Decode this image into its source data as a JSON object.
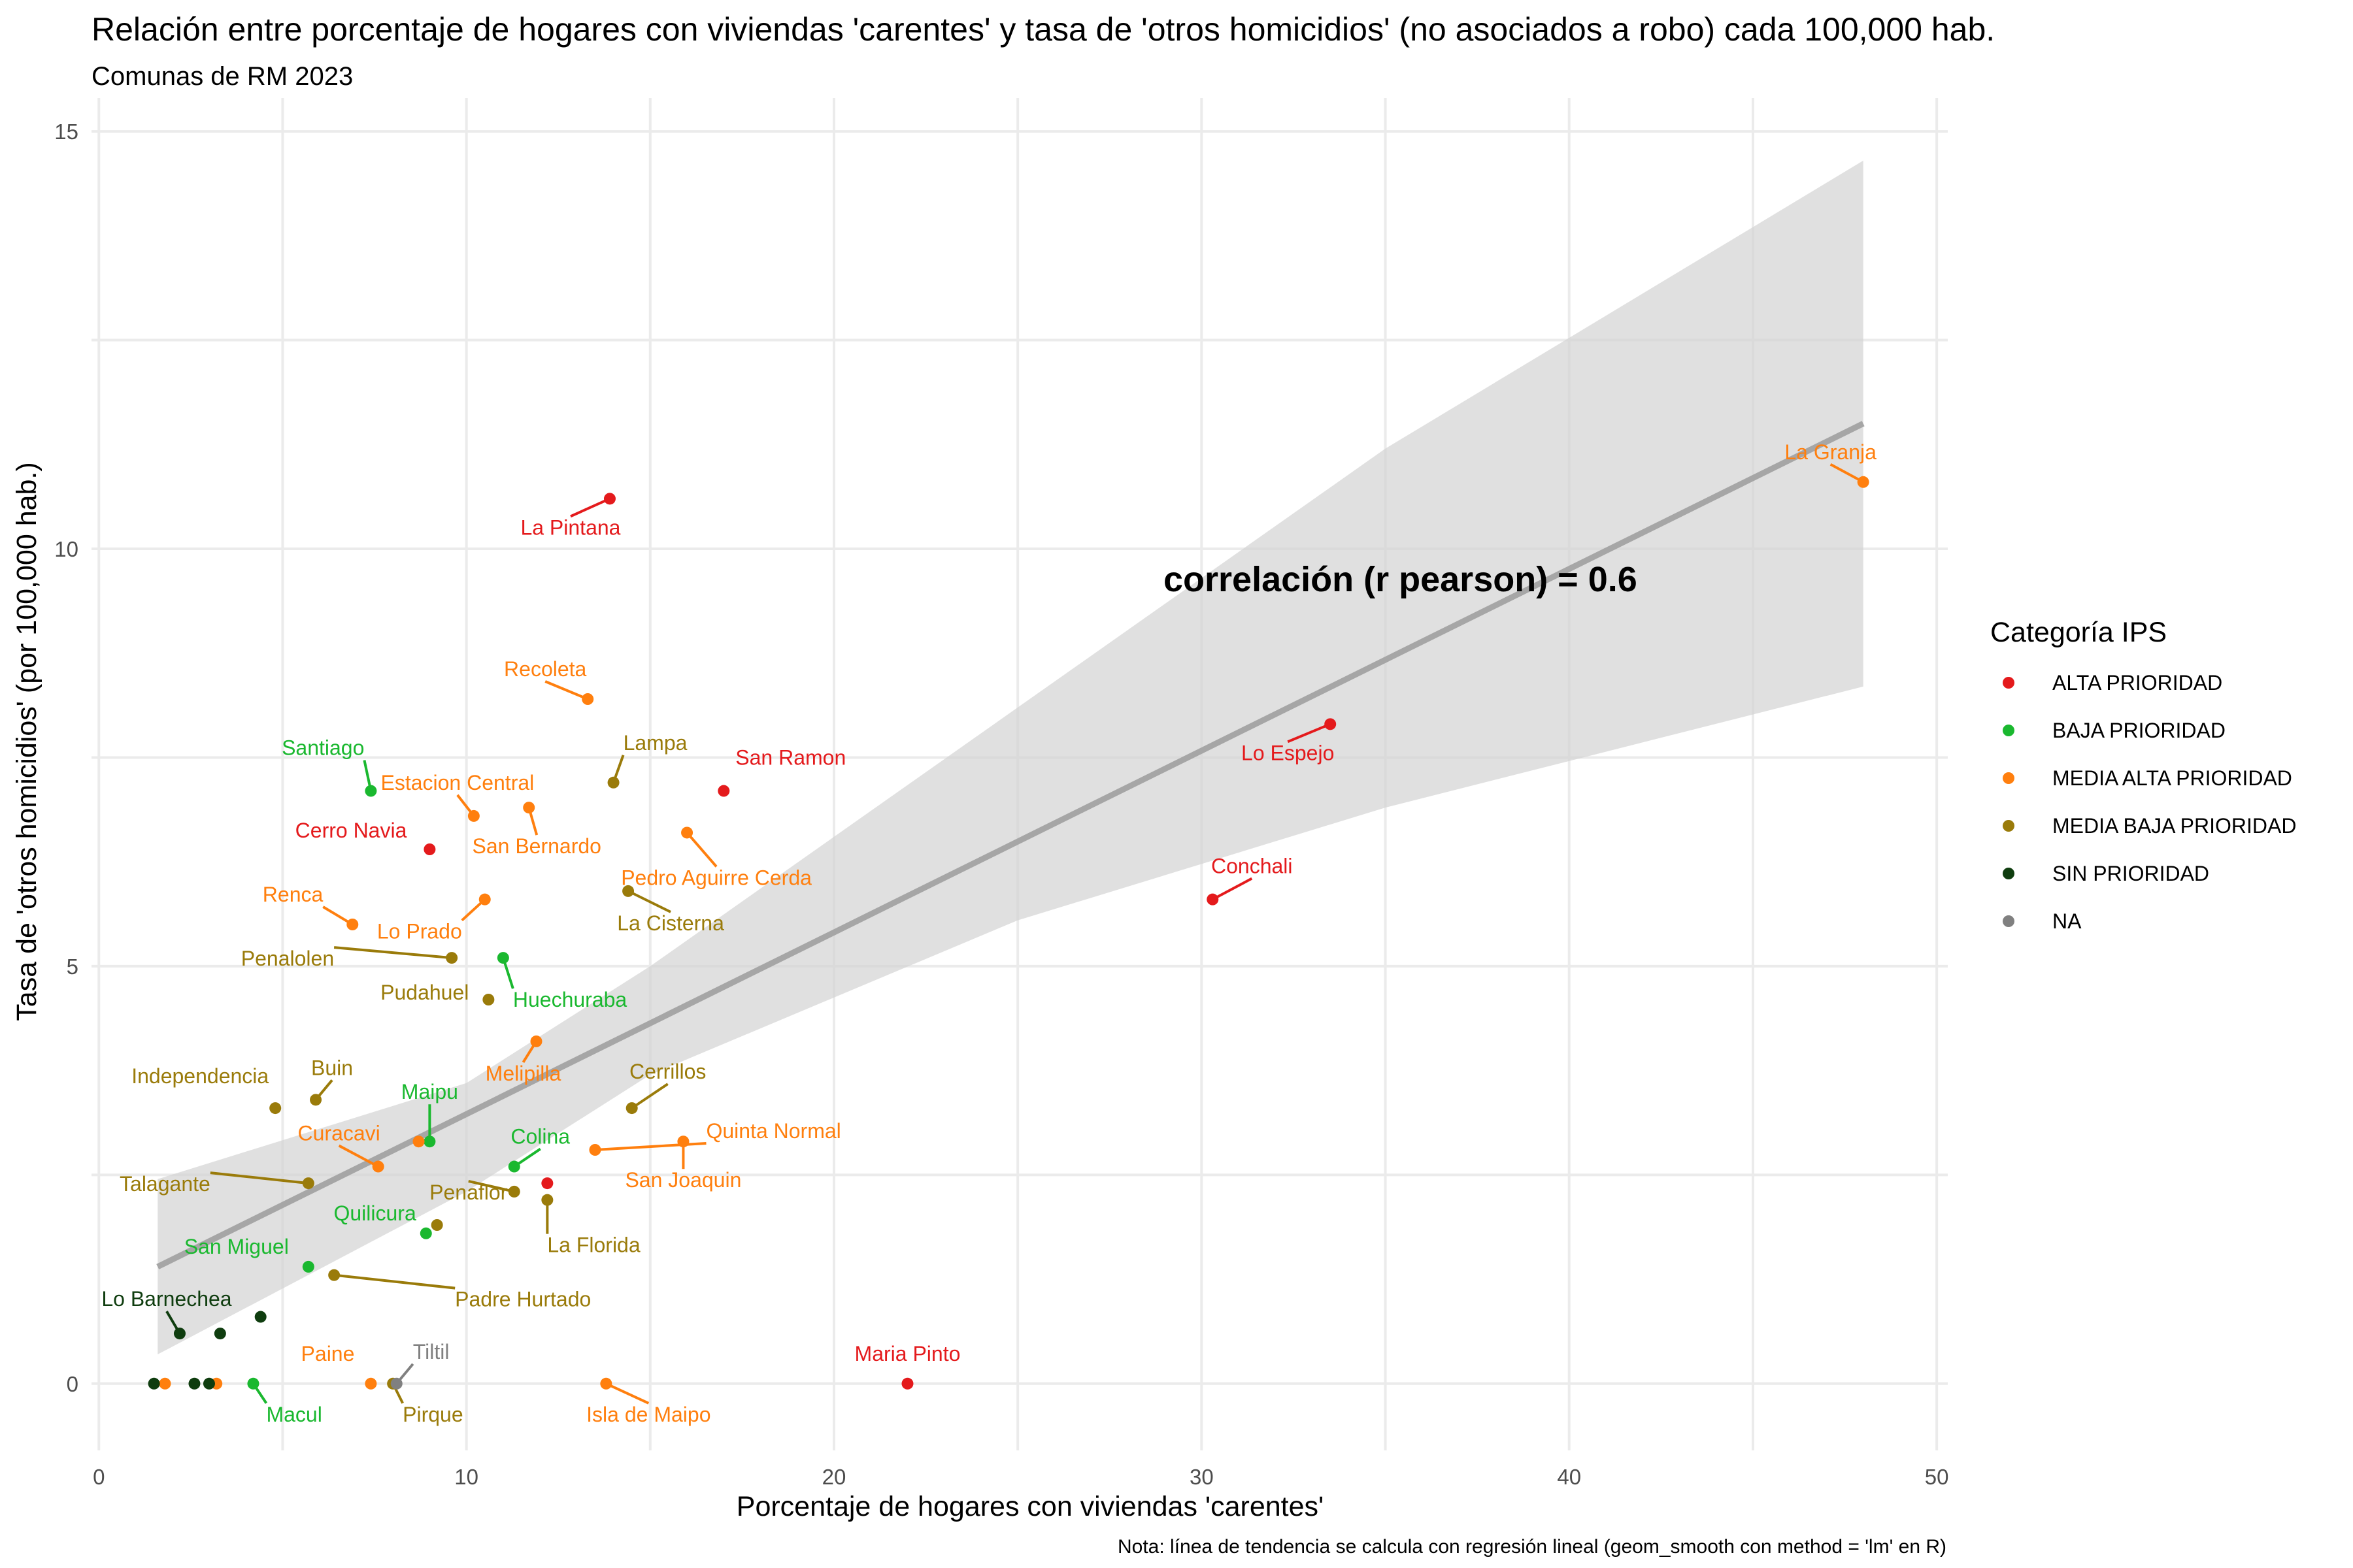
{
  "title": "Relación entre porcentaje de hogares con viviendas 'carentes' y tasa de 'otros homicidios' (no asociados a robo) cada 100,000 hab.",
  "subtitle": "Comunas de RM 2023",
  "caption": "Nota: línea de tendencia se calcula con regresión lineal (geom_smooth con method = 'lm' en R)",
  "annotation": "correlación (r pearson) = 0.6",
  "legend": {
    "title": "Categoría IPS",
    "items": [
      {
        "key": "ALTA",
        "label": "ALTA PRIORIDAD",
        "color": "#e41a1c"
      },
      {
        "key": "BAJA",
        "label": "BAJA PRIORIDAD",
        "color": "#1ab82f"
      },
      {
        "key": "MEDIA_ALTA",
        "label": "MEDIA ALTA PRIORIDAD",
        "color": "#ff7f0e"
      },
      {
        "key": "MEDIA_BAJA",
        "label": "MEDIA BAJA PRIORIDAD",
        "color": "#9a7b0a"
      },
      {
        "key": "SIN",
        "label": "SIN PRIORIDAD",
        "color": "#0f3d0f"
      },
      {
        "key": "NA",
        "label": "NA",
        "color": "#808080"
      }
    ]
  },
  "chart_data": {
    "type": "scatter",
    "xlabel": "Porcentaje de hogares con viviendas 'carentes'",
    "ylabel": "Tasa de 'otros homicidios' (por 100,000 hab.)",
    "xlim": [
      -0.2,
      50.3
    ],
    "ylim": [
      -0.8,
      15.4
    ],
    "xticks": [
      0,
      10,
      20,
      30,
      40,
      50
    ],
    "yticks": [
      0,
      5,
      10,
      15
    ],
    "grid": true,
    "legend_position": "right",
    "trend": {
      "method": "lm",
      "line": [
        [
          1.6,
          1.4
        ],
        [
          48.0,
          11.5
        ]
      ],
      "band_upper": [
        [
          1.6,
          2.45
        ],
        [
          10,
          3.6
        ],
        [
          15,
          5.0
        ],
        [
          25,
          8.1
        ],
        [
          35,
          11.2
        ],
        [
          48.0,
          14.65
        ]
      ],
      "band_lower": [
        [
          1.6,
          0.35
        ],
        [
          10,
          2.3
        ],
        [
          15,
          3.7
        ],
        [
          25,
          5.55
        ],
        [
          35,
          6.9
        ],
        [
          48.0,
          8.35
        ]
      ]
    },
    "points": [
      {
        "name": "La Pintana",
        "x": 13.9,
        "y": 10.6,
        "cat": "ALTA"
      },
      {
        "name": "San Ramon",
        "x": 17.0,
        "y": 7.1,
        "cat": "ALTA"
      },
      {
        "name": "Cerro Navia",
        "x": 9.0,
        "y": 6.4,
        "cat": "ALTA"
      },
      {
        "name": "Lo Espejo",
        "x": 33.5,
        "y": 7.9,
        "cat": "ALTA"
      },
      {
        "name": "Conchali",
        "x": 30.3,
        "y": 5.8,
        "cat": "ALTA"
      },
      {
        "name": "Maria Pinto",
        "x": 22.0,
        "y": 0.0,
        "cat": "ALTA"
      },
      {
        "name": "",
        "x": 12.2,
        "y": 2.4,
        "cat": "ALTA"
      },
      {
        "name": "Santiago",
        "x": 7.4,
        "y": 7.1,
        "cat": "BAJA"
      },
      {
        "name": "Huechuraba",
        "x": 11.0,
        "y": 5.1,
        "cat": "BAJA"
      },
      {
        "name": "Maipu",
        "x": 9.0,
        "y": 2.9,
        "cat": "BAJA"
      },
      {
        "name": "Colina",
        "x": 11.3,
        "y": 2.6,
        "cat": "BAJA"
      },
      {
        "name": "Quilicura",
        "x": 8.9,
        "y": 1.8,
        "cat": "BAJA"
      },
      {
        "name": "San Miguel",
        "x": 5.7,
        "y": 1.4,
        "cat": "BAJA"
      },
      {
        "name": "Macul",
        "x": 4.2,
        "y": 0.0,
        "cat": "BAJA"
      },
      {
        "name": "La Granja",
        "x": 48.0,
        "y": 10.8,
        "cat": "MEDIA_ALTA"
      },
      {
        "name": "Recoleta",
        "x": 13.3,
        "y": 8.2,
        "cat": "MEDIA_ALTA"
      },
      {
        "name": "Estacion Central",
        "x": 10.2,
        "y": 6.8,
        "cat": "MEDIA_ALTA"
      },
      {
        "name": "San Bernardo",
        "x": 11.7,
        "y": 6.9,
        "cat": "MEDIA_ALTA"
      },
      {
        "name": "Pedro Aguirre Cerda",
        "x": 16.0,
        "y": 6.6,
        "cat": "MEDIA_ALTA"
      },
      {
        "name": "Renca",
        "x": 6.9,
        "y": 5.5,
        "cat": "MEDIA_ALTA"
      },
      {
        "name": "Lo Prado",
        "x": 10.5,
        "y": 5.8,
        "cat": "MEDIA_ALTA"
      },
      {
        "name": "Melipilla",
        "x": 11.9,
        "y": 4.1,
        "cat": "MEDIA_ALTA"
      },
      {
        "name": "Curacavi",
        "x": 7.6,
        "y": 2.6,
        "cat": "MEDIA_ALTA"
      },
      {
        "name": "Quinta Normal",
        "x": 13.5,
        "y": 2.8,
        "cat": "MEDIA_ALTA"
      },
      {
        "name": "San Joaquin",
        "x": 15.9,
        "y": 2.9,
        "cat": "MEDIA_ALTA"
      },
      {
        "name": "Paine",
        "x": 7.4,
        "y": 0.0,
        "cat": "MEDIA_ALTA"
      },
      {
        "name": "Isla de Maipo",
        "x": 13.8,
        "y": 0.0,
        "cat": "MEDIA_ALTA"
      },
      {
        "name": "",
        "x": 8.7,
        "y": 2.9,
        "cat": "MEDIA_ALTA"
      },
      {
        "name": "",
        "x": 1.8,
        "y": 0.0,
        "cat": "MEDIA_ALTA"
      },
      {
        "name": "",
        "x": 3.2,
        "y": 0.0,
        "cat": "MEDIA_ALTA"
      },
      {
        "name": "Lampa",
        "x": 14.0,
        "y": 7.2,
        "cat": "MEDIA_BAJA"
      },
      {
        "name": "La Cisterna",
        "x": 14.4,
        "y": 5.9,
        "cat": "MEDIA_BAJA"
      },
      {
        "name": "Penalolen",
        "x": 9.6,
        "y": 5.1,
        "cat": "MEDIA_BAJA"
      },
      {
        "name": "Pudahuel",
        "x": 10.6,
        "y": 4.6,
        "cat": "MEDIA_BAJA"
      },
      {
        "name": "Independencia",
        "x": 4.8,
        "y": 3.3,
        "cat": "MEDIA_BAJA"
      },
      {
        "name": "Buin",
        "x": 5.9,
        "y": 3.4,
        "cat": "MEDIA_BAJA"
      },
      {
        "name": "Cerrillos",
        "x": 14.5,
        "y": 3.3,
        "cat": "MEDIA_BAJA"
      },
      {
        "name": "Talagante",
        "x": 5.7,
        "y": 2.4,
        "cat": "MEDIA_BAJA"
      },
      {
        "name": "Penaflor",
        "x": 11.3,
        "y": 2.3,
        "cat": "MEDIA_BAJA"
      },
      {
        "name": "La Florida",
        "x": 12.2,
        "y": 2.2,
        "cat": "MEDIA_BAJA"
      },
      {
        "name": "Padre Hurtado",
        "x": 6.4,
        "y": 1.3,
        "cat": "MEDIA_BAJA"
      },
      {
        "name": "Pirque",
        "x": 8.0,
        "y": 0.0,
        "cat": "MEDIA_BAJA"
      },
      {
        "name": "",
        "x": 9.2,
        "y": 1.9,
        "cat": "MEDIA_BAJA"
      },
      {
        "name": "Lo Barnechea",
        "x": 2.2,
        "y": 0.6,
        "cat": "SIN"
      },
      {
        "name": "",
        "x": 3.3,
        "y": 0.6,
        "cat": "SIN"
      },
      {
        "name": "",
        "x": 4.4,
        "y": 0.8,
        "cat": "SIN"
      },
      {
        "name": "",
        "x": 1.5,
        "y": 0.0,
        "cat": "SIN"
      },
      {
        "name": "",
        "x": 2.6,
        "y": 0.0,
        "cat": "SIN"
      },
      {
        "name": "",
        "x": 3.0,
        "y": 0.0,
        "cat": "SIN"
      },
      {
        "name": "Tiltil",
        "x": 8.1,
        "y": 0.0,
        "cat": "NA"
      }
    ]
  }
}
